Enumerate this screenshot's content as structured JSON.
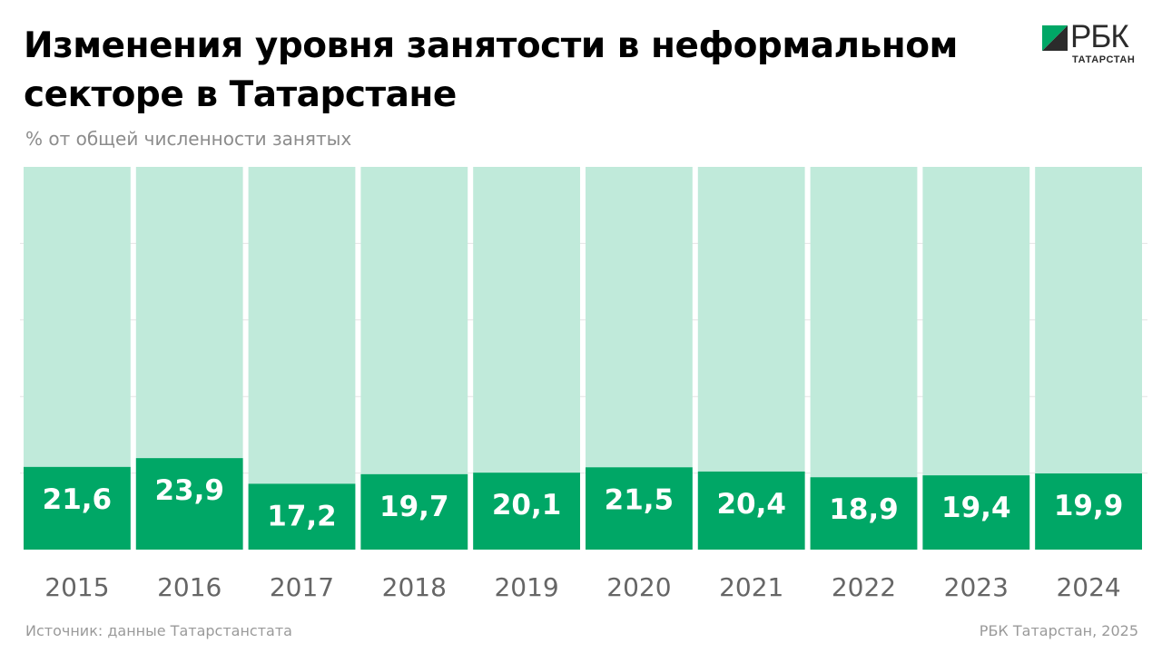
{
  "header": {
    "title": "Изменения уровня занятости в неформальном секторе в Татарстане",
    "subtitle": "% от общей численности занятых"
  },
  "logo": {
    "text": "РБК",
    "sub": "ТАТАРСТАН"
  },
  "footer": {
    "source": "Источник: данные Татарстанстата",
    "credit": "РБК Татарстан, 2025"
  },
  "colors": {
    "bar": "#00a766",
    "background_bar": "#c0eada",
    "label": "#ffffff",
    "tick": "#666666"
  },
  "chart_data": {
    "type": "bar",
    "title": "Изменения уровня занятости в неформальном секторе в Татарстане",
    "ylabel": "% от общей численности занятых",
    "categories": [
      "2015",
      "2016",
      "2017",
      "2018",
      "2019",
      "2020",
      "2021",
      "2022",
      "2023",
      "2024"
    ],
    "values": [
      21.6,
      23.9,
      17.2,
      19.7,
      20.1,
      21.5,
      20.4,
      18.9,
      19.4,
      19.9
    ],
    "value_labels": [
      "21,6",
      "23,9",
      "17,2",
      "19,7",
      "20,1",
      "21,5",
      "20,4",
      "18,9",
      "19,4",
      "19,9"
    ],
    "ylim": [
      0,
      100
    ],
    "grid": true,
    "legend": "none"
  }
}
